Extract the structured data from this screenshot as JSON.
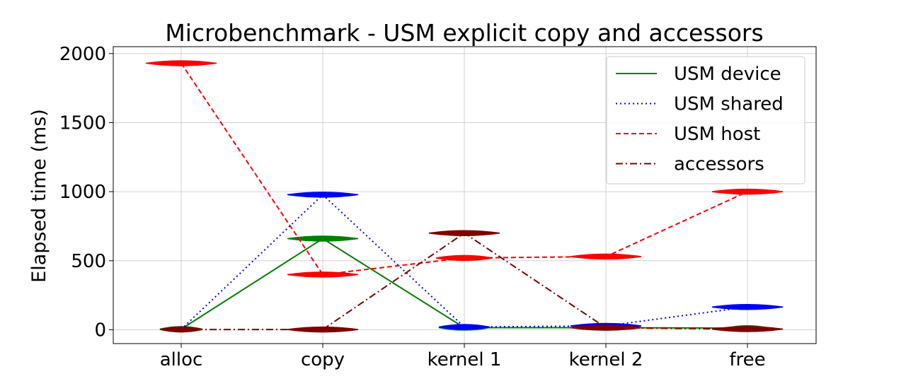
{
  "chart_data": {
    "type": "line",
    "title": "Microbenchmark - USM explicit copy and accessors",
    "xlabel": "",
    "ylabel": "Elapsed time (ms)",
    "categories": [
      "alloc",
      "copy",
      "kernel 1",
      "kernel 2",
      "free"
    ],
    "ylim": [
      -100,
      2050
    ],
    "yticks": [
      0,
      500,
      1000,
      1500,
      2000
    ],
    "grid": true,
    "legend_position": "top-right",
    "series": [
      {
        "name": "USM device",
        "color": "#008000",
        "linestyle": "solid",
        "values": [
          5,
          660,
          15,
          15,
          12
        ],
        "violin_max_halfwidth": [
          0.15,
          0.25,
          0.18,
          0.25,
          0.15
        ]
      },
      {
        "name": "USM shared",
        "color": "#0000ff",
        "linestyle": "dotted",
        "values": [
          3,
          978,
          20,
          28,
          165
        ],
        "violin_max_halfwidth": [
          0.08,
          0.25,
          0.18,
          0.25,
          0.25
        ]
      },
      {
        "name": "USM host",
        "color": "#ff0000",
        "linestyle": "dashed",
        "values": [
          1930,
          400,
          520,
          530,
          1000
        ],
        "violin_max_halfwidth": [
          0.25,
          0.25,
          0.2,
          0.25,
          0.25
        ]
      },
      {
        "name": "accessors",
        "color": "#800000",
        "linestyle": "dashdot",
        "values": [
          2,
          2,
          700,
          15,
          5
        ],
        "violin_max_halfwidth": [
          0.15,
          0.25,
          0.25,
          0.25,
          0.25
        ]
      }
    ]
  }
}
